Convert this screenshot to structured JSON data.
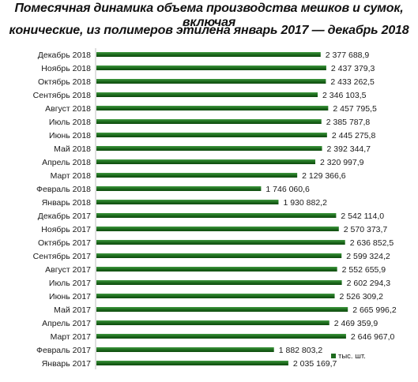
{
  "chart_data": {
    "type": "bar",
    "orientation": "horizontal",
    "title_line1": "Помесячная динамика объема производства мешков и сумок, включая",
    "title_line2": "конические, из полимеров этилена январь 2017 — декабрь 2018",
    "categories": [
      "Декабрь 2018",
      "Ноябрь 2018",
      "Октябрь 2018",
      "Сентябрь 2018",
      "Август 2018",
      "Июль 2018",
      "Июнь 2018",
      "Май 2018",
      "Апрель 2018",
      "Март 2018",
      "Февраль 2018",
      "Январь 2018",
      "Декабрь 2017",
      "Ноябрь 2017",
      "Октябрь 2017",
      "Сентябрь 2017",
      "Август 2017",
      "Июль 2017",
      "Июнь 2017",
      "Май 2017",
      "Апрель 2017",
      "Март 2017",
      "Февраль 2017",
      "Январь 2017"
    ],
    "values": [
      2377688.9,
      2437379.3,
      2433262.5,
      2346103.5,
      2457795.5,
      2385787.8,
      2445275.8,
      2392344.7,
      2320997.9,
      2129366.6,
      1746060.6,
      1930882.2,
      2542114.0,
      2570373.7,
      2636852.5,
      2599324.2,
      2552655.9,
      2602294.3,
      2526309.2,
      2665996.2,
      2469359.9,
      2646967.0,
      1882803.2,
      2035169.7
    ],
    "value_labels": [
      "2 377 688,9",
      "2 437 379,3",
      "2 433 262,5",
      "2 346 103,5",
      "2 457 795,5",
      "2 385 787,8",
      "2 445 275,8",
      "2 392 344,7",
      "2 320 997,9",
      "2 129 366,6",
      "1 746 060,6",
      "1 930 882,2",
      "2 542 114,0",
      "2 570 373,7",
      "2 636 852,5",
      "2 599 324,2",
      "2 552 655,9",
      "2 602 294,3",
      "2 526 309,2",
      "2 665 996,2",
      "2 469 359,9",
      "2 646 967,0",
      "1 882 803,2",
      "2 035 169,7"
    ],
    "series": [
      {
        "name": "тыс. шт.",
        "color": "#1e6b1e"
      }
    ],
    "legend_position": "bottom-right",
    "grid": false,
    "xlim": [
      0,
      3100000
    ]
  }
}
